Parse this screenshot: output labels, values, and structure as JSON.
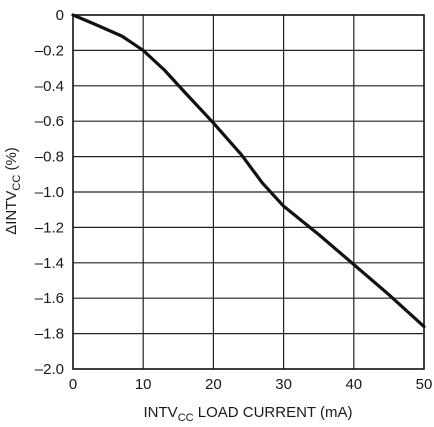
{
  "chart_data": {
    "type": "line",
    "title": "",
    "xlabel": {
      "prefix": "INTV",
      "subscript": "CC",
      "suffix": " LOAD CURRENT (mA)"
    },
    "ylabel": {
      "prefix": "ΔINTV",
      "subscript": "CC",
      "suffix": " (%)"
    },
    "xlim": [
      0,
      50
    ],
    "ylim": [
      -2.0,
      0
    ],
    "x_ticks": [
      0,
      10,
      20,
      30,
      40,
      50
    ],
    "x_tick_labels": [
      "0",
      "10",
      "20",
      "30",
      "40",
      "50"
    ],
    "y_ticks": [
      0,
      -0.2,
      -0.4,
      -0.6,
      -0.8,
      -1.0,
      -1.2,
      -1.4,
      -1.6,
      -1.8,
      -2.0
    ],
    "y_tick_labels": [
      "0",
      "–0.2",
      "–0.4",
      "–0.6",
      "–0.8",
      "–1.0",
      "–1.2",
      "–1.4",
      "–1.6",
      "–1.8",
      "–2.0"
    ],
    "grid": true,
    "colors": {
      "line": "#111111",
      "grid": "#222222",
      "frame": "#111111",
      "text": "#1a1a1a"
    },
    "series": [
      {
        "x": [
          0,
          3,
          7,
          10,
          13,
          16,
          20,
          24,
          27,
          30,
          35,
          40,
          45,
          50
        ],
        "y": [
          0,
          -0.05,
          -0.12,
          -0.2,
          -0.31,
          -0.44,
          -0.61,
          -0.79,
          -0.95,
          -1.08,
          -1.24,
          -1.41,
          -1.58,
          -1.76
        ]
      }
    ]
  }
}
